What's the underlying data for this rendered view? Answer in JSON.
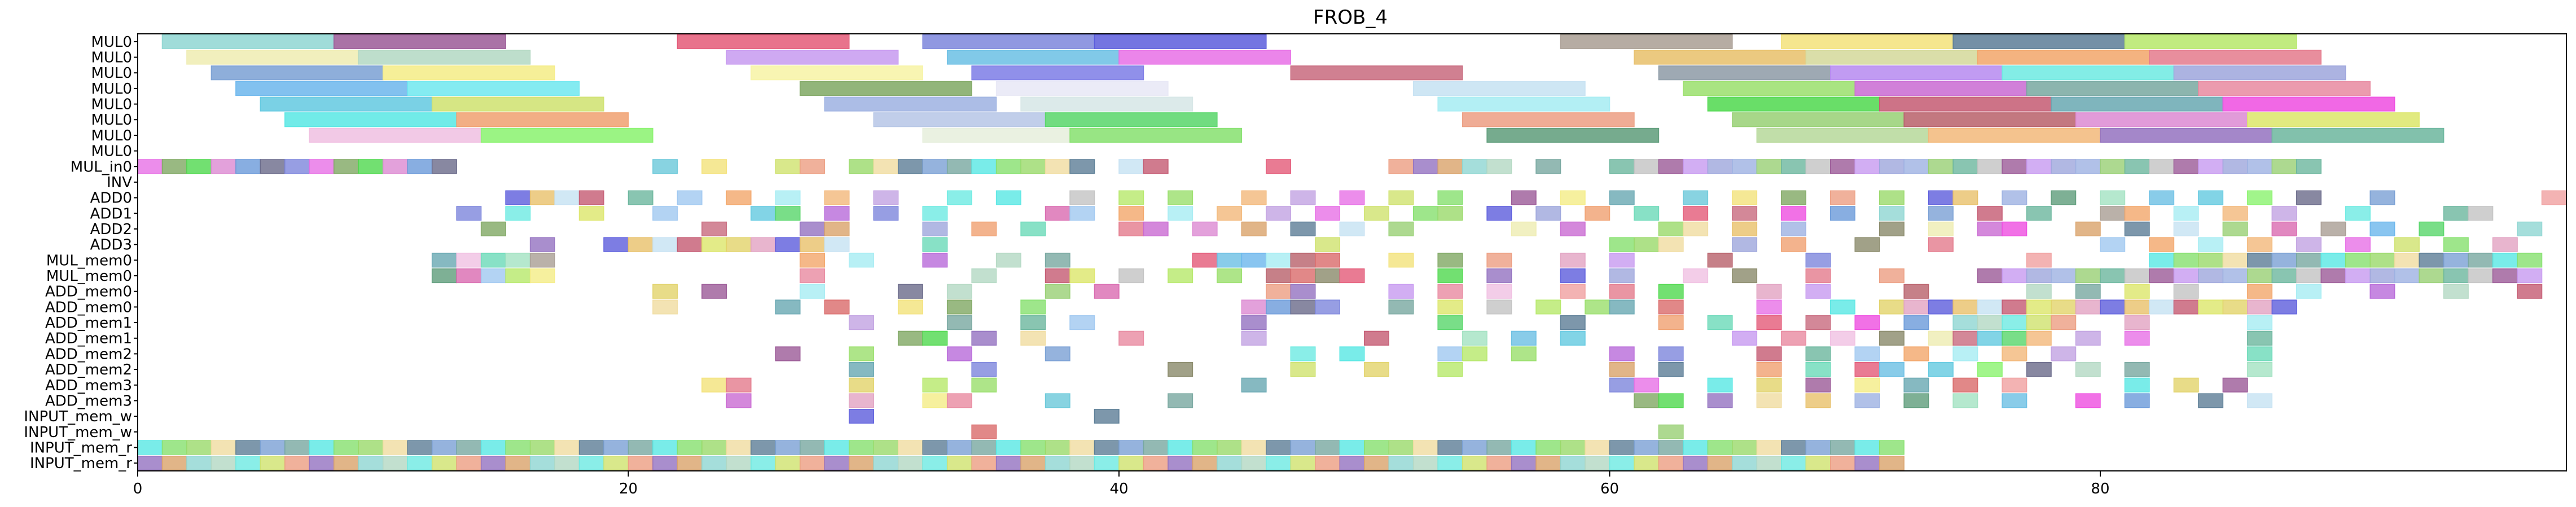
{
  "chart_data": {
    "type": "gantt",
    "title": "FROB_4",
    "xlabel": "",
    "ylabel": "",
    "xlim": [
      0,
      99
    ],
    "x_ticks": [
      0,
      20,
      40,
      60,
      80
    ],
    "x_tick_labels": [
      "0",
      "20",
      "40",
      "60",
      "80"
    ],
    "grid": false,
    "rows": [
      "MUL0",
      "MUL0",
      "MUL0",
      "MUL0",
      "MUL0",
      "MUL0",
      "MUL0",
      "MUL0",
      "MUL_in0",
      "INV",
      "ADD0",
      "ADD1",
      "ADD2",
      "ADD3",
      "MUL_mem0",
      "MUL_mem0",
      "ADD_mem0",
      "ADD_mem0",
      "ADD_mem1",
      "ADD_mem1",
      "ADD_mem2",
      "ADD_mem2",
      "ADD_mem3",
      "ADD_mem3",
      "INPUT_mem_w",
      "INPUT_mem_w",
      "INPUT_mem_r",
      "INPUT_mem_r"
    ],
    "long_tasks": [
      {
        "row": 0,
        "start": 1,
        "end": 8,
        "color": "#8fd6d2"
      },
      {
        "row": 0,
        "start": 8,
        "end": 15,
        "color": "#9b5a97"
      },
      {
        "row": 0,
        "start": 22,
        "end": 29,
        "color": "#e45a78"
      },
      {
        "row": 0,
        "start": 32,
        "end": 39,
        "color": "#7d86dc"
      },
      {
        "row": 0,
        "start": 39,
        "end": 46,
        "color": "#5c5ddc"
      },
      {
        "row": 0,
        "start": 58,
        "end": 65,
        "color": "#a99e93"
      },
      {
        "row": 0,
        "start": 67,
        "end": 74,
        "color": "#f3e27a"
      },
      {
        "row": 0,
        "start": 74,
        "end": 81,
        "color": "#5c7d96"
      },
      {
        "row": 0,
        "start": 81,
        "end": 88,
        "color": "#b6e86a"
      },
      {
        "row": 1,
        "start": 2,
        "end": 9,
        "color": "#eeecb1"
      },
      {
        "row": 1,
        "start": 9,
        "end": 16,
        "color": "#b3d8c3"
      },
      {
        "row": 1,
        "start": 24,
        "end": 31,
        "color": "#c79af0"
      },
      {
        "row": 1,
        "start": 33,
        "end": 40,
        "color": "#6bbfe4"
      },
      {
        "row": 1,
        "start": 40,
        "end": 47,
        "color": "#e770e6"
      },
      {
        "row": 1,
        "start": 61,
        "end": 68,
        "color": "#e8c06a"
      },
      {
        "row": 1,
        "start": 68,
        "end": 75,
        "color": "#d4d89a"
      },
      {
        "row": 1,
        "start": 75,
        "end": 82,
        "color": "#f2a66a"
      },
      {
        "row": 1,
        "start": 82,
        "end": 89,
        "color": "#e47a8c"
      },
      {
        "row": 2,
        "start": 3,
        "end": 10,
        "color": "#7aa0d4"
      },
      {
        "row": 2,
        "start": 10,
        "end": 17,
        "color": "#f4ec86"
      },
      {
        "row": 2,
        "start": 25,
        "end": 32,
        "color": "#f7f3a4"
      },
      {
        "row": 2,
        "start": 34,
        "end": 41,
        "color": "#7d7ce6"
      },
      {
        "row": 2,
        "start": 47,
        "end": 54,
        "color": "#c86a7e"
      },
      {
        "row": 2,
        "start": 62,
        "end": 69,
        "color": "#8d9aa6"
      },
      {
        "row": 2,
        "start": 69,
        "end": 76,
        "color": "#b68af0"
      },
      {
        "row": 2,
        "start": 76,
        "end": 83,
        "color": "#6deae2"
      },
      {
        "row": 2,
        "start": 83,
        "end": 90,
        "color": "#9ea6dc"
      },
      {
        "row": 3,
        "start": 4,
        "end": 11,
        "color": "#6cb6ec"
      },
      {
        "row": 3,
        "start": 11,
        "end": 18,
        "color": "#6fe8ef"
      },
      {
        "row": 3,
        "start": 27,
        "end": 34,
        "color": "#7fa863"
      },
      {
        "row": 3,
        "start": 35,
        "end": 42,
        "color": "#e8e8f6"
      },
      {
        "row": 3,
        "start": 52,
        "end": 59,
        "color": "#c6e2f2"
      },
      {
        "row": 3,
        "start": 63,
        "end": 70,
        "color": "#9adf6c"
      },
      {
        "row": 3,
        "start": 70,
        "end": 77,
        "color": "#c96ad2"
      },
      {
        "row": 3,
        "start": 77,
        "end": 84,
        "color": "#78a8a0"
      },
      {
        "row": 3,
        "start": 84,
        "end": 91,
        "color": "#e88aa0"
      },
      {
        "row": 4,
        "start": 5,
        "end": 12,
        "color": "#63c9e0"
      },
      {
        "row": 4,
        "start": 12,
        "end": 19,
        "color": "#cfe26e"
      },
      {
        "row": 4,
        "start": 28,
        "end": 35,
        "color": "#9eb2e2"
      },
      {
        "row": 4,
        "start": 36,
        "end": 43,
        "color": "#d6e6e6"
      },
      {
        "row": 4,
        "start": 53,
        "end": 60,
        "color": "#a6ecf2"
      },
      {
        "row": 4,
        "start": 64,
        "end": 71,
        "color": "#4fd84e"
      },
      {
        "row": 4,
        "start": 71,
        "end": 78,
        "color": "#c45a72"
      },
      {
        "row": 4,
        "start": 78,
        "end": 85,
        "color": "#68a8b2"
      },
      {
        "row": 4,
        "start": 85,
        "end": 92,
        "color": "#ee4ee0"
      },
      {
        "row": 5,
        "start": 6,
        "end": 13,
        "color": "#58e7e4"
      },
      {
        "row": 5,
        "start": 13,
        "end": 20,
        "color": "#f0a070"
      },
      {
        "row": 5,
        "start": 30,
        "end": 37,
        "color": "#b6c6e6"
      },
      {
        "row": 5,
        "start": 37,
        "end": 44,
        "color": "#58d66a"
      },
      {
        "row": 5,
        "start": 54,
        "end": 61,
        "color": "#ec9e82"
      },
      {
        "row": 5,
        "start": 65,
        "end": 72,
        "color": "#98d074"
      },
      {
        "row": 5,
        "start": 72,
        "end": 79,
        "color": "#b8606a"
      },
      {
        "row": 5,
        "start": 79,
        "end": 86,
        "color": "#dc8ad2"
      },
      {
        "row": 5,
        "start": 86,
        "end": 93,
        "color": "#dce66a"
      },
      {
        "row": 6,
        "start": 7,
        "end": 14,
        "color": "#f0c0e2"
      },
      {
        "row": 6,
        "start": 14,
        "end": 21,
        "color": "#8af26e"
      },
      {
        "row": 6,
        "start": 32,
        "end": 38,
        "color": "#e6eedc"
      },
      {
        "row": 6,
        "start": 38,
        "end": 45,
        "color": "#86e06e"
      },
      {
        "row": 6,
        "start": 55,
        "end": 62,
        "color": "#5e9c7a"
      },
      {
        "row": 6,
        "start": 66,
        "end": 73,
        "color": "#b6d89a"
      },
      {
        "row": 6,
        "start": 73,
        "end": 80,
        "color": "#f2b87a"
      },
      {
        "row": 6,
        "start": 80,
        "end": 87,
        "color": "#9472c0"
      },
      {
        "row": 6,
        "start": 87,
        "end": 94,
        "color": "#6cb69e"
      },
      {
        "row": 7,
        "start": 0,
        "end": 0,
        "color": "#ffffff"
      }
    ],
    "unit_task_rows": {
      "8": {
        "cols": [
          0,
          1,
          2,
          3,
          4,
          5,
          6,
          7,
          8,
          9,
          10,
          11,
          12,
          21,
          23,
          26,
          27,
          29,
          30,
          31,
          32,
          33,
          34,
          35,
          36,
          37,
          38,
          40,
          41,
          46,
          51,
          52,
          53,
          54,
          55,
          57,
          60,
          61,
          62,
          63,
          64,
          65,
          66,
          67,
          68,
          69,
          70,
          71,
          72,
          73,
          74,
          75,
          76,
          77,
          78,
          79,
          80,
          81,
          82,
          83,
          84,
          85,
          86,
          87,
          88
        ],
        "palette_seed": 1
      },
      "9": {
        "cols": [],
        "palette_seed": 2
      },
      "10": {
        "cols": [
          15,
          16,
          17,
          18,
          20,
          22,
          24,
          26,
          28,
          30,
          33,
          35,
          38,
          40,
          42,
          45,
          47,
          49,
          51,
          53,
          56,
          58,
          60,
          63,
          65,
          67,
          69,
          71,
          73,
          74,
          76,
          78,
          80,
          82,
          84,
          86,
          88,
          91,
          98
        ],
        "palette_seed": 3
      },
      "11": {
        "cols": [
          13,
          15,
          18,
          21,
          25,
          26,
          28,
          30,
          32,
          37,
          38,
          40,
          42,
          44,
          46,
          48,
          50,
          52,
          53,
          55,
          57,
          59,
          61,
          63,
          65,
          67,
          69,
          71,
          73,
          75,
          77,
          80,
          81,
          83,
          85,
          87,
          90,
          94,
          95
        ],
        "palette_seed": 4
      },
      "12": {
        "cols": [
          14,
          23,
          27,
          28,
          32,
          34,
          36,
          40,
          41,
          43,
          45,
          47,
          49,
          51,
          56,
          58,
          62,
          63,
          65,
          67,
          71,
          73,
          75,
          76,
          79,
          81,
          83,
          85,
          87,
          89,
          91,
          93,
          97
        ],
        "palette_seed": 5
      },
      "13": {
        "cols": [
          16,
          19,
          20,
          21,
          22,
          23,
          24,
          25,
          26,
          27,
          28,
          32,
          48,
          60,
          61,
          62,
          65,
          67,
          70,
          73,
          80,
          82,
          84,
          86,
          88,
          90,
          92,
          94,
          96
        ],
        "palette_seed": 6
      },
      "14": {
        "cols": [
          12,
          13,
          14,
          15,
          16,
          27,
          29,
          32,
          35,
          37,
          43,
          44,
          45,
          46,
          47,
          48,
          51,
          53,
          55,
          58,
          60,
          64,
          68,
          77,
          82,
          83,
          84,
          85,
          86,
          87,
          88,
          89,
          90,
          91,
          92,
          93,
          94,
          95,
          96,
          97
        ],
        "palette_seed": 7
      },
      "15": {
        "cols": [
          12,
          13,
          14,
          15,
          16,
          27,
          34,
          37,
          38,
          40,
          42,
          44,
          46,
          47,
          48,
          49,
          53,
          55,
          58,
          60,
          63,
          65,
          68,
          71,
          75,
          76,
          77,
          78,
          79,
          80,
          81,
          82,
          83,
          84,
          85,
          86,
          87,
          88,
          89,
          90,
          91,
          92,
          93,
          94,
          95,
          96,
          97
        ],
        "palette_seed": 8
      },
      "16": {
        "cols": [
          21,
          23,
          27,
          31,
          33,
          37,
          39,
          46,
          47,
          51,
          53,
          55,
          58,
          60,
          62,
          66,
          68,
          72,
          77,
          79,
          81,
          83,
          86,
          88,
          91,
          94,
          97
        ],
        "palette_seed": 9
      },
      "17": {
        "cols": [
          21,
          26,
          28,
          31,
          33,
          36,
          45,
          46,
          47,
          48,
          51,
          53,
          55,
          57,
          59,
          60,
          62,
          66,
          69,
          71,
          72,
          73,
          74,
          75,
          76,
          77,
          78,
          79,
          80,
          81,
          82,
          83,
          84,
          85,
          86,
          87
        ],
        "palette_seed": 10
      },
      "18": {
        "cols": [
          29,
          33,
          36,
          38,
          45,
          53,
          58,
          62,
          64,
          66,
          68,
          70,
          72,
          74,
          75,
          76,
          77,
          78,
          81,
          86
        ],
        "palette_seed": 11
      },
      "19": {
        "cols": [
          31,
          32,
          34,
          36,
          40,
          45,
          50,
          54,
          56,
          58,
          65,
          67,
          69,
          71,
          73,
          74,
          75,
          76,
          77,
          79,
          81,
          86
        ],
        "palette_seed": 12
      },
      "20": {
        "cols": [
          26,
          29,
          33,
          37,
          47,
          49,
          53,
          54,
          56,
          60,
          62,
          66,
          68,
          70,
          72,
          74,
          76,
          78,
          86
        ],
        "palette_seed": 13
      },
      "21": {
        "cols": [
          29,
          34,
          42,
          47,
          50,
          53,
          60,
          62,
          66,
          68,
          70,
          71,
          73,
          75,
          77,
          79,
          81,
          86
        ],
        "palette_seed": 14
      },
      "22": {
        "cols": [
          23,
          24,
          29,
          32,
          34,
          45,
          60,
          61,
          64,
          66,
          68,
          70,
          72,
          74,
          76,
          81,
          83,
          85
        ],
        "palette_seed": 15
      },
      "23": {
        "cols": [
          24,
          29,
          32,
          33,
          37,
          42,
          61,
          62,
          64,
          66,
          68,
          70,
          72,
          74,
          76,
          79,
          81,
          84,
          86
        ],
        "palette_seed": 16
      },
      "24": {
        "cols": [
          29,
          39
        ],
        "palette_seed": 17
      },
      "25": {
        "cols": [
          34,
          62
        ],
        "palette_seed": 18
      },
      "26": {
        "cols": [
          0,
          1,
          2,
          3,
          4,
          5,
          6,
          7,
          8,
          9,
          10,
          11,
          12,
          13,
          14,
          15,
          16,
          17,
          18,
          19,
          20,
          21,
          22,
          23,
          24,
          25,
          26,
          27,
          28,
          29,
          30,
          31,
          32,
          33,
          34,
          35,
          36,
          37,
          38,
          39,
          40,
          41,
          42,
          43,
          44,
          45,
          46,
          47,
          48,
          49,
          50,
          51,
          52,
          53,
          54,
          55,
          56,
          57,
          58,
          59,
          60,
          61,
          62,
          63,
          64,
          65,
          66,
          67,
          68,
          69,
          70,
          71
        ],
        "palette_seed": 19
      },
      "27": {
        "cols": [
          0,
          1,
          2,
          3,
          4,
          5,
          6,
          7,
          8,
          9,
          10,
          11,
          12,
          13,
          14,
          15,
          16,
          17,
          18,
          19,
          20,
          21,
          22,
          23,
          24,
          25,
          26,
          27,
          28,
          29,
          30,
          31,
          32,
          33,
          34,
          35,
          36,
          37,
          38,
          39,
          40,
          41,
          42,
          43,
          44,
          45,
          46,
          47,
          48,
          49,
          50,
          51,
          52,
          53,
          54,
          55,
          56,
          57,
          58,
          59,
          60,
          61,
          62,
          63,
          64,
          65,
          66,
          67,
          68,
          69,
          70,
          71
        ],
        "palette_seed": 20
      }
    }
  },
  "palette": [
    "#8fd6d2",
    "#9b5a97",
    "#e45a78",
    "#7d86dc",
    "#5c5ddc",
    "#a99e93",
    "#f3e27a",
    "#5c7d96",
    "#b6e86a",
    "#eeecb1",
    "#b3d8c3",
    "#c79af0",
    "#6bbfe4",
    "#e770e6",
    "#e8c06a",
    "#f2a66a",
    "#e47a8c",
    "#7aa0d4",
    "#f4ec86",
    "#c86a7e",
    "#6deae2",
    "#9ea6dc",
    "#6cb6ec",
    "#7fa863",
    "#c6e2f2",
    "#9adf6c",
    "#c96ad2",
    "#78a8a0",
    "#e88aa0",
    "#63c9e0",
    "#cfe26e",
    "#9eb2e2",
    "#a6ecf2",
    "#4fd84e",
    "#c45a72",
    "#68a8b2",
    "#ee4ee0",
    "#58e7e4",
    "#f0a070",
    "#58d66a",
    "#ec9e82",
    "#98d074",
    "#b8606a",
    "#dc8ad2",
    "#dce66a",
    "#f0c0e2",
    "#8af26e",
    "#86e06e",
    "#5e9c7a",
    "#f2b87a",
    "#9472c0",
    "#6cb69e",
    "#d96a6a",
    "#6a9ad9",
    "#e2d36a",
    "#6ad9b8",
    "#b86ad9",
    "#9ad96a",
    "#d96ab0",
    "#6ac8d9",
    "#d9a26a",
    "#c3c3c3",
    "#8a8a6a",
    "#6a6a8a",
    "#e2a2c2",
    "#a2e2c2",
    "#c2a2e2",
    "#f0dca0",
    "#a0c8f0",
    "#f0a0a0"
  ]
}
